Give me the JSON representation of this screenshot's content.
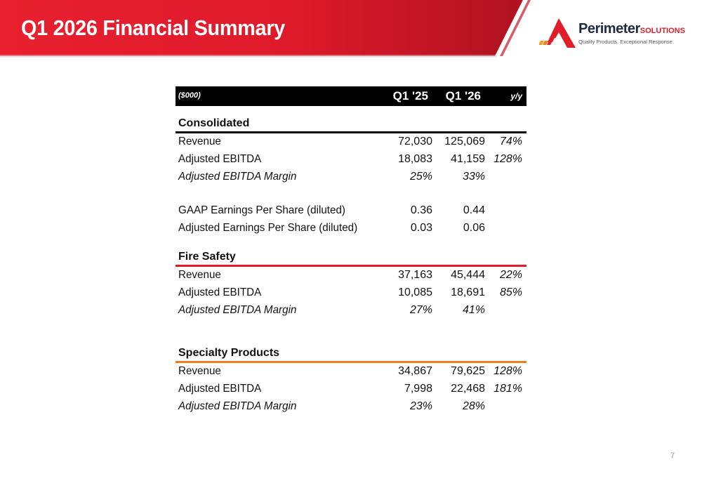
{
  "header": {
    "title": "Q1 2026 Financial Summary",
    "colors": {
      "banner_red": "#e31b2b",
      "banner_dark": "#b5121d"
    }
  },
  "logo": {
    "name": "Perimeter",
    "name_suffix": "SOLUTIONS",
    "tagline": "Quality Products. Exceptional Response.",
    "icon": "perimeter-logo-icon"
  },
  "table": {
    "units": "($000)",
    "columns": [
      "Q1 '25",
      "Q1 '26",
      "y/y"
    ],
    "sections": {
      "consolidated": {
        "title": "Consolidated",
        "rule_color": "#000000",
        "rows": [
          {
            "label": "Revenue",
            "q1_25": "72,030",
            "q1_26": "125,069",
            "yy": "74%"
          },
          {
            "label": "Adjusted EBITDA",
            "q1_25": "18,083",
            "q1_26": "41,159",
            "yy": "128%"
          },
          {
            "label": "Adjusted EBITDA Margin",
            "q1_25": "25%",
            "q1_26": "33%",
            "yy": ""
          },
          {
            "label": "GAAP Earnings Per Share (diluted)",
            "q1_25": "0.36",
            "q1_26": "0.44",
            "yy": ""
          },
          {
            "label": "Adjusted Earnings Per Share (diluted)",
            "q1_25": "0.03",
            "q1_26": "0.06",
            "yy": ""
          }
        ]
      },
      "fire_safety": {
        "title": "Fire Safety",
        "rule_color": "#e31b2b",
        "rows": [
          {
            "label": "Revenue",
            "q1_25": "37,163",
            "q1_26": "45,444",
            "yy": "22%"
          },
          {
            "label": "Adjusted EBITDA",
            "q1_25": "10,085",
            "q1_26": "18,691",
            "yy": "85%"
          },
          {
            "label": "Adjusted EBITDA Margin",
            "q1_25": "27%",
            "q1_26": "41%",
            "yy": ""
          }
        ]
      },
      "specialty_products": {
        "title": "Specialty Products",
        "rule_color": "#f07f1f",
        "rows": [
          {
            "label": "Revenue",
            "q1_25": "34,867",
            "q1_26": "79,625",
            "yy": "128%"
          },
          {
            "label": "Adjusted EBITDA",
            "q1_25": "7,998",
            "q1_26": "22,468",
            "yy": "181%"
          },
          {
            "label": "Adjusted EBITDA Margin",
            "q1_25": "23%",
            "q1_26": "28%",
            "yy": ""
          }
        ]
      }
    }
  },
  "footer": {
    "page_number": "7"
  }
}
